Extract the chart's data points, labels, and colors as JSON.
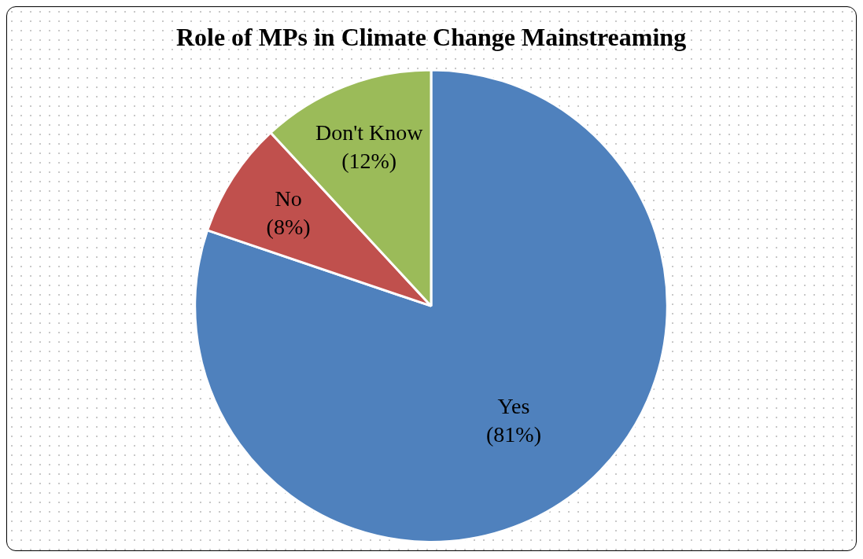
{
  "chart_data": {
    "type": "pie",
    "title": "Role of MPs in Climate Change Mainstreaming",
    "categories": [
      "Yes",
      "No",
      "Don't Know"
    ],
    "values": [
      81,
      8,
      12
    ],
    "colors": [
      "#4f81bd",
      "#c0504d",
      "#9bbb59"
    ],
    "value_labels": [
      "(81%)",
      "(8%)",
      "(12%)"
    ],
    "legend": false
  }
}
